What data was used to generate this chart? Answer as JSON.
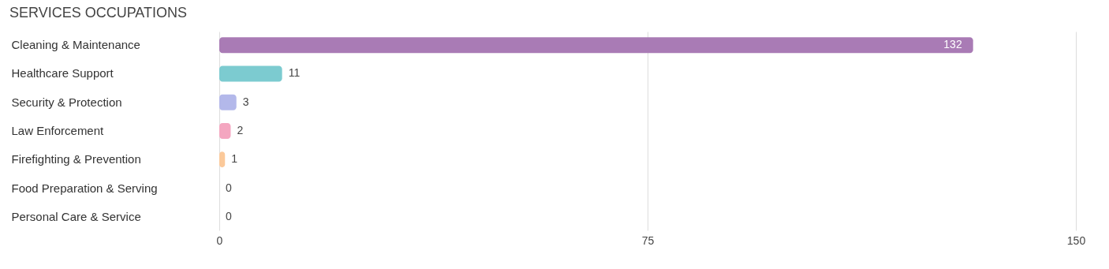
{
  "chart_data": {
    "type": "bar",
    "orientation": "horizontal",
    "title": "SERVICES OCCUPATIONS",
    "categories": [
      "Cleaning & Maintenance",
      "Healthcare Support",
      "Security & Protection",
      "Law Enforcement",
      "Firefighting & Prevention",
      "Food Preparation & Serving",
      "Personal Care & Service"
    ],
    "values": [
      132,
      11,
      3,
      2,
      1,
      0,
      0
    ],
    "colors": [
      "#a97bb5",
      "#7ccbd0",
      "#b3b8ea",
      "#f4a6c0",
      "#fbc99a",
      "#f0b0ad",
      "#a9c7ec"
    ],
    "xlim": [
      0,
      150
    ],
    "xticks": [
      0,
      75,
      150
    ],
    "grid": "x",
    "data_labels": true
  }
}
